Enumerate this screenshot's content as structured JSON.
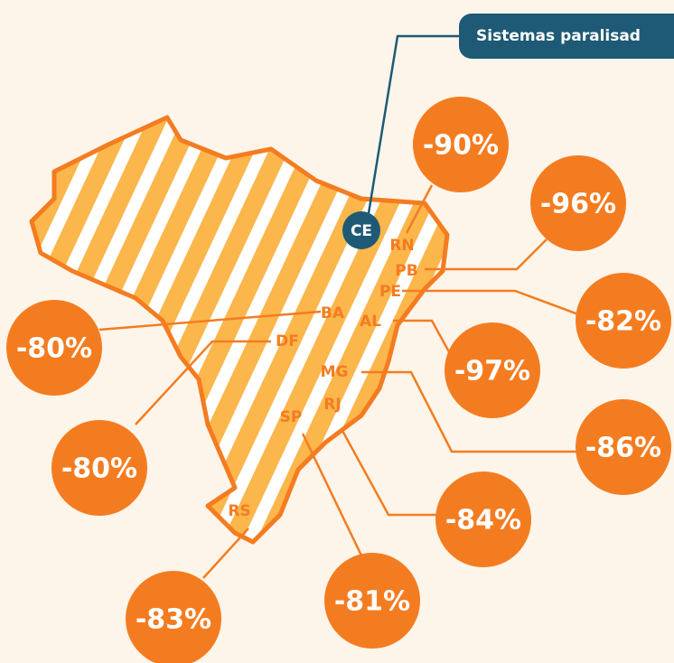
{
  "title": "Sistemas paralisad",
  "highlight": {
    "code": "CE"
  },
  "states": [
    {
      "code": "RN",
      "value": "-90%"
    },
    {
      "code": "PB",
      "value": "-96%"
    },
    {
      "code": "PE",
      "value": "-82%"
    },
    {
      "code": "AL",
      "value": "-97%"
    },
    {
      "code": "MG",
      "value": "-86%"
    },
    {
      "code": "RJ",
      "value": "-84%"
    },
    {
      "code": "SP",
      "value": "-81%"
    },
    {
      "code": "RS",
      "value": "-83%"
    },
    {
      "code": "DF",
      "value": "-80%"
    },
    {
      "code": "BA",
      "value": "-80%"
    }
  ]
}
